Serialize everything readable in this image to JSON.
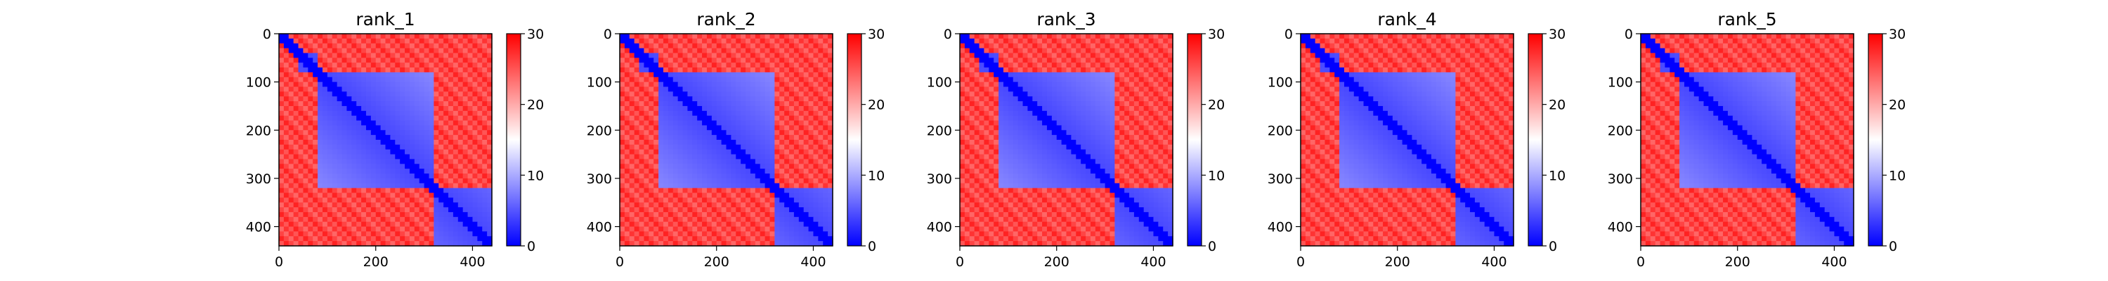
{
  "chart_data": {
    "type": "heatmap",
    "colormap": "bwr",
    "grid": false,
    "colorbar": {
      "vmin": 0,
      "vmax": 30,
      "ticks": [
        0,
        10,
        20,
        30
      ],
      "tick_labels": [
        "0",
        "10",
        "20",
        "30"
      ]
    },
    "x_ticks": [
      0,
      200,
      400
    ],
    "x_tick_labels": [
      "0",
      "200",
      "400"
    ],
    "y_ticks": [
      0,
      100,
      200,
      300,
      400
    ],
    "y_tick_labels": [
      "0",
      "100",
      "200",
      "300",
      "400"
    ],
    "xlim": [
      0,
      440
    ],
    "ylim": [
      440,
      0
    ],
    "panels": [
      {
        "title": "rank_1",
        "domain_blocks": [
          [
            0,
            20
          ],
          [
            40,
            80
          ],
          [
            80,
            320
          ],
          [
            320,
            440
          ]
        ],
        "interdomain_distance": 26,
        "intradomain_distance": 4
      },
      {
        "title": "rank_2",
        "domain_blocks": [
          [
            0,
            20
          ],
          [
            40,
            80
          ],
          [
            80,
            320
          ],
          [
            320,
            440
          ]
        ],
        "interdomain_distance": 26,
        "intradomain_distance": 4
      },
      {
        "title": "rank_3",
        "domain_blocks": [
          [
            0,
            20
          ],
          [
            40,
            80
          ],
          [
            80,
            320
          ],
          [
            320,
            440
          ]
        ],
        "interdomain_distance": 26,
        "intradomain_distance": 4
      },
      {
        "title": "rank_4",
        "domain_blocks": [
          [
            0,
            20
          ],
          [
            40,
            80
          ],
          [
            80,
            320
          ],
          [
            320,
            440
          ]
        ],
        "interdomain_distance": 26,
        "intradomain_distance": 4
      },
      {
        "title": "rank_5",
        "domain_blocks": [
          [
            0,
            20
          ],
          [
            40,
            80
          ],
          [
            80,
            320
          ],
          [
            320,
            440
          ]
        ],
        "interdomain_distance": 26,
        "intradomain_distance": 4
      }
    ]
  },
  "colors": {
    "low": "#0000ff",
    "mid": "#ffffff",
    "high": "#ff0000"
  }
}
